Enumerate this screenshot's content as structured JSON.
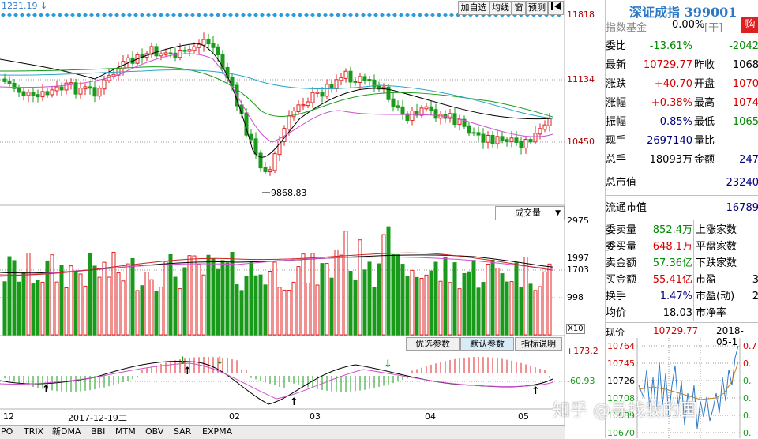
{
  "top_left": {
    "value": "1231.19",
    "arrow": "↓"
  },
  "toolbar": {
    "add_watch": "加自选",
    "avg_line": "均线",
    "window": "窗",
    "forecast": "预测"
  },
  "main_axis": {
    "p1": "11818",
    "p2": "11134",
    "p3": "10450"
  },
  "low_marker": "9868.83",
  "vol_dropdown": "成交量",
  "vol_axis": {
    "p1": "2975",
    "p2": "1997",
    "p3": "1703",
    "p4": "998",
    "unit": "X10"
  },
  "indicator_buttons": {
    "optimize": "优选参数",
    "default": "默认参数",
    "explain": "指标说明"
  },
  "macd_axis": {
    "p1": "+173.2",
    "p2": "-60.93"
  },
  "date_axis": {
    "d1": "12",
    "d2": "2017-12-19二",
    "d3": "02",
    "d4": "03",
    "d5": "04",
    "d6": "05"
  },
  "bottom_tabs": [
    "PO",
    "TRIX",
    "新DMA",
    "BBI",
    "MTM",
    "OBV",
    "SAR",
    "EXPMA"
  ],
  "watermark": "知乎 @寻找我的国",
  "panel": {
    "title": "深证成指 399001",
    "fund_label": "指数基金",
    "fund_value": "0.00%",
    "fund_unit": "[干]",
    "buy_label": "购",
    "rows": [
      {
        "l1": "委比",
        "v1": "-13.61%",
        "c1": "grn",
        "l2": "",
        "v2": "-2042",
        "c2": "grn"
      },
      {
        "l1": "最新",
        "v1": "10729.77",
        "c1": "red",
        "l2": "昨收",
        "v2": "1068",
        "c2": "blk"
      },
      {
        "l1": "涨跌",
        "v1": "+40.70",
        "c1": "red",
        "l2": "开盘",
        "v2": "1070",
        "c2": "red"
      },
      {
        "l1": "涨幅",
        "v1": "+0.38%",
        "c1": "red",
        "l2": "最高",
        "v2": "1074",
        "c2": "red"
      },
      {
        "l1": "振幅",
        "v1": "0.85%",
        "c1": "navy",
        "l2": "最低",
        "v2": "1065",
        "c2": "grn"
      },
      {
        "l1": "现手",
        "v1": "2697140",
        "c1": "navy",
        "l2": "量比",
        "v2": "",
        "c2": "blk"
      },
      {
        "l1": "总手",
        "v1": "18093万",
        "c1": "blk",
        "l2": "金额",
        "v2": "247",
        "c2": "navy"
      }
    ],
    "total_mv_label": "总市值",
    "total_mv_value": "23240",
    "float_mv_label": "流通市值",
    "float_mv_value": "16789",
    "rows2": [
      {
        "l1": "委卖量",
        "v1": "852.4万",
        "c1": "grn",
        "l2": "上涨家数",
        "v2": ""
      },
      {
        "l1": "委买量",
        "v1": "648.1万",
        "c1": "red",
        "l2": "平盘家数",
        "v2": ""
      },
      {
        "l1": "卖金额",
        "v1": "57.36亿",
        "c1": "grn",
        "l2": "下跌家数",
        "v2": ""
      },
      {
        "l1": "买金额",
        "v1": "55.41亿",
        "c1": "red",
        "l2": "市盈",
        "v2": "3"
      },
      {
        "l1": "换手",
        "v1": "1.47%",
        "c1": "navy",
        "l2": "市盈(动)",
        "v2": "2"
      },
      {
        "l1": "均价",
        "v1": "18.03",
        "c1": "blk",
        "l2": "市净率",
        "v2": ""
      }
    ],
    "mini_label": "现价",
    "mini_price": "10729.77",
    "mini_date": "2018-05-1",
    "mini_axis": [
      "10764",
      "10745",
      "10726",
      "10708",
      "10689",
      "10670"
    ],
    "mini_axis_r": [
      "0.7",
      "0.",
      "0.",
      "0.",
      "0.",
      "0."
    ]
  },
  "colors": {
    "up": "#e02020",
    "down": "#1a9a1a",
    "title_blue": "#2b78c7",
    "bg": "#ffffff"
  }
}
